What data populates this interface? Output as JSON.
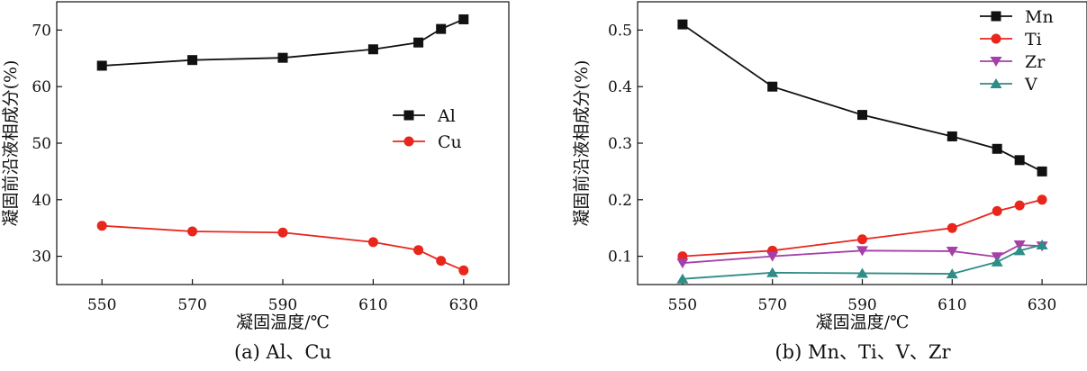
{
  "chart_data": [
    {
      "type": "line",
      "caption": "(a) Al、Cu",
      "xlabel": "凝固温度/℃",
      "ylabel": "凝固前沿液相成分(%)",
      "xticks": [
        550,
        570,
        590,
        610,
        630
      ],
      "yticks": [
        30,
        40,
        50,
        60,
        70
      ],
      "xlim": [
        540,
        640
      ],
      "ylim": [
        25,
        75
      ],
      "legend_position": "right",
      "x": [
        550,
        570,
        590,
        610,
        620,
        625,
        630
      ],
      "series": [
        {
          "name": "Al",
          "color": "#111111",
          "marker": "square",
          "values": [
            63.7,
            64.7,
            65.1,
            66.6,
            67.8,
            70.2,
            71.9
          ]
        },
        {
          "name": "Cu",
          "color": "#e8261c",
          "marker": "circle",
          "values": [
            35.4,
            34.4,
            34.2,
            32.5,
            31.1,
            29.2,
            27.5
          ]
        }
      ]
    },
    {
      "type": "line",
      "caption": "(b) Mn、Ti、V、Zr",
      "xlabel": "凝固温度/℃",
      "ylabel": "凝固前沿液相成分(%)",
      "xticks": [
        550,
        570,
        590,
        610,
        630
      ],
      "yticks": [
        0.1,
        0.2,
        0.3,
        0.4,
        0.5
      ],
      "xlim": [
        540,
        640
      ],
      "ylim": [
        0.05,
        0.55
      ],
      "legend_position": "top-right",
      "x": [
        550,
        570,
        590,
        610,
        620,
        625,
        630
      ],
      "series": [
        {
          "name": "Mn",
          "color": "#111111",
          "marker": "square",
          "values": [
            0.51,
            0.4,
            0.35,
            0.312,
            0.29,
            0.27,
            0.25
          ]
        },
        {
          "name": "Ti",
          "color": "#e8261c",
          "marker": "circle",
          "values": [
            0.1,
            0.11,
            0.13,
            0.15,
            0.18,
            0.19,
            0.2
          ]
        },
        {
          "name": "Zr",
          "color": "#a63fa8",
          "marker": "triangle-down",
          "values": [
            0.088,
            0.1,
            0.11,
            0.109,
            0.099,
            0.12,
            0.118
          ]
        },
        {
          "name": "V",
          "color": "#2f8c86",
          "marker": "triangle-up",
          "values": [
            0.06,
            0.071,
            0.07,
            0.069,
            0.09,
            0.11,
            0.12
          ]
        }
      ]
    }
  ]
}
